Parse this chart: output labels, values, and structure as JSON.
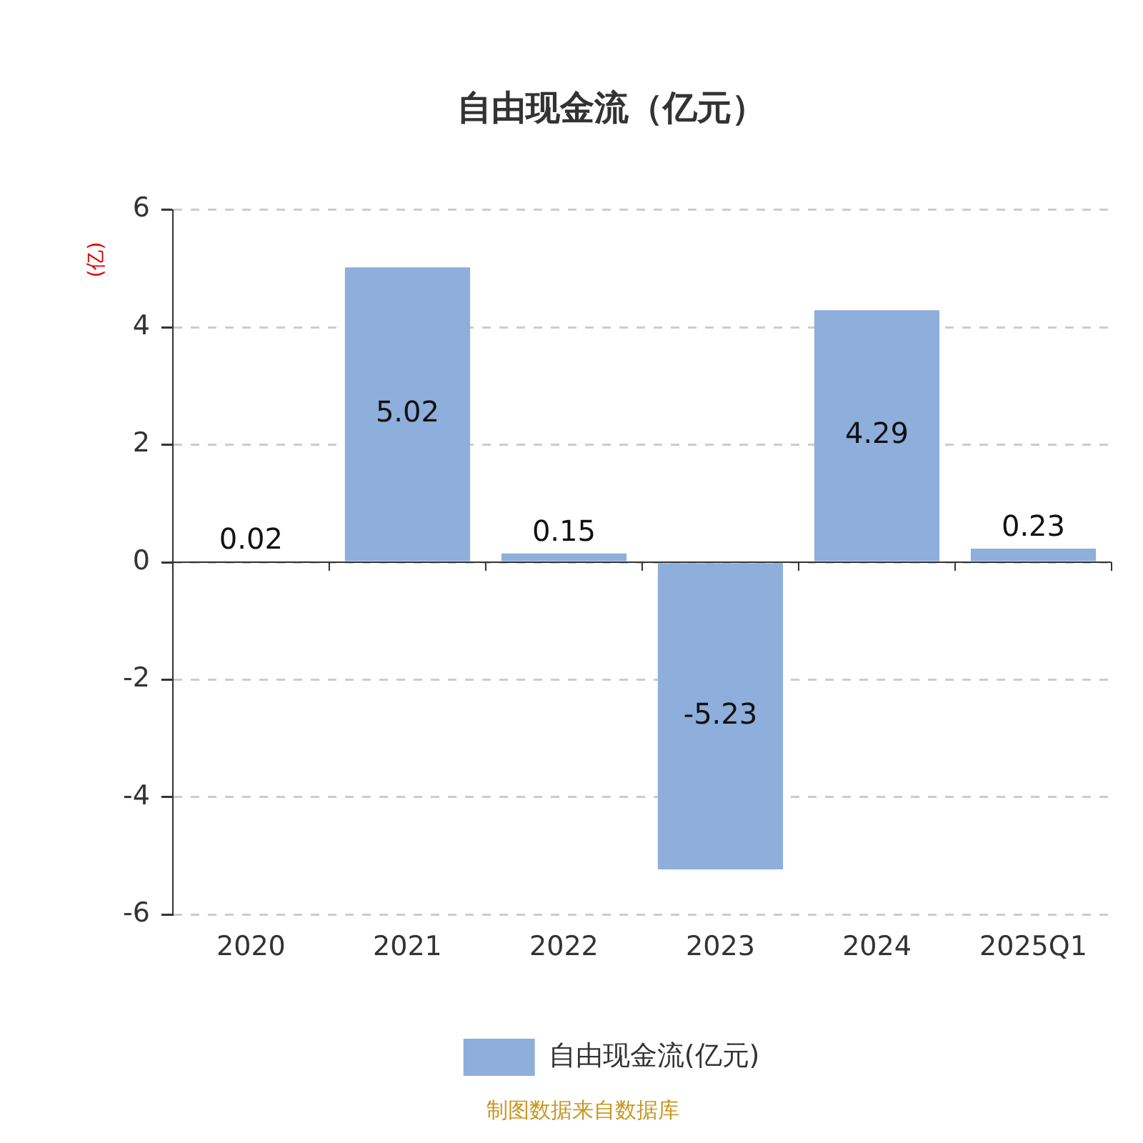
{
  "chart_data": {
    "type": "bar",
    "title": "自由现金流（亿元）",
    "ylabel": "(亿)",
    "categories": [
      "2020",
      "2021",
      "2022",
      "2023",
      "2024",
      "2025Q1"
    ],
    "series": [
      {
        "name": "自由现金流(亿元)",
        "color": "#8eaedb",
        "values": [
          0.02,
          5.02,
          0.15,
          -5.23,
          4.29,
          0.23
        ]
      }
    ],
    "ylim": [
      -6,
      6
    ],
    "yticks": [
      -6,
      -4,
      -2,
      0,
      2,
      4,
      6
    ],
    "grid": "y",
    "legend": "bottom",
    "data_labels": true,
    "annotations": [
      "制图数据来自数据库"
    ]
  }
}
